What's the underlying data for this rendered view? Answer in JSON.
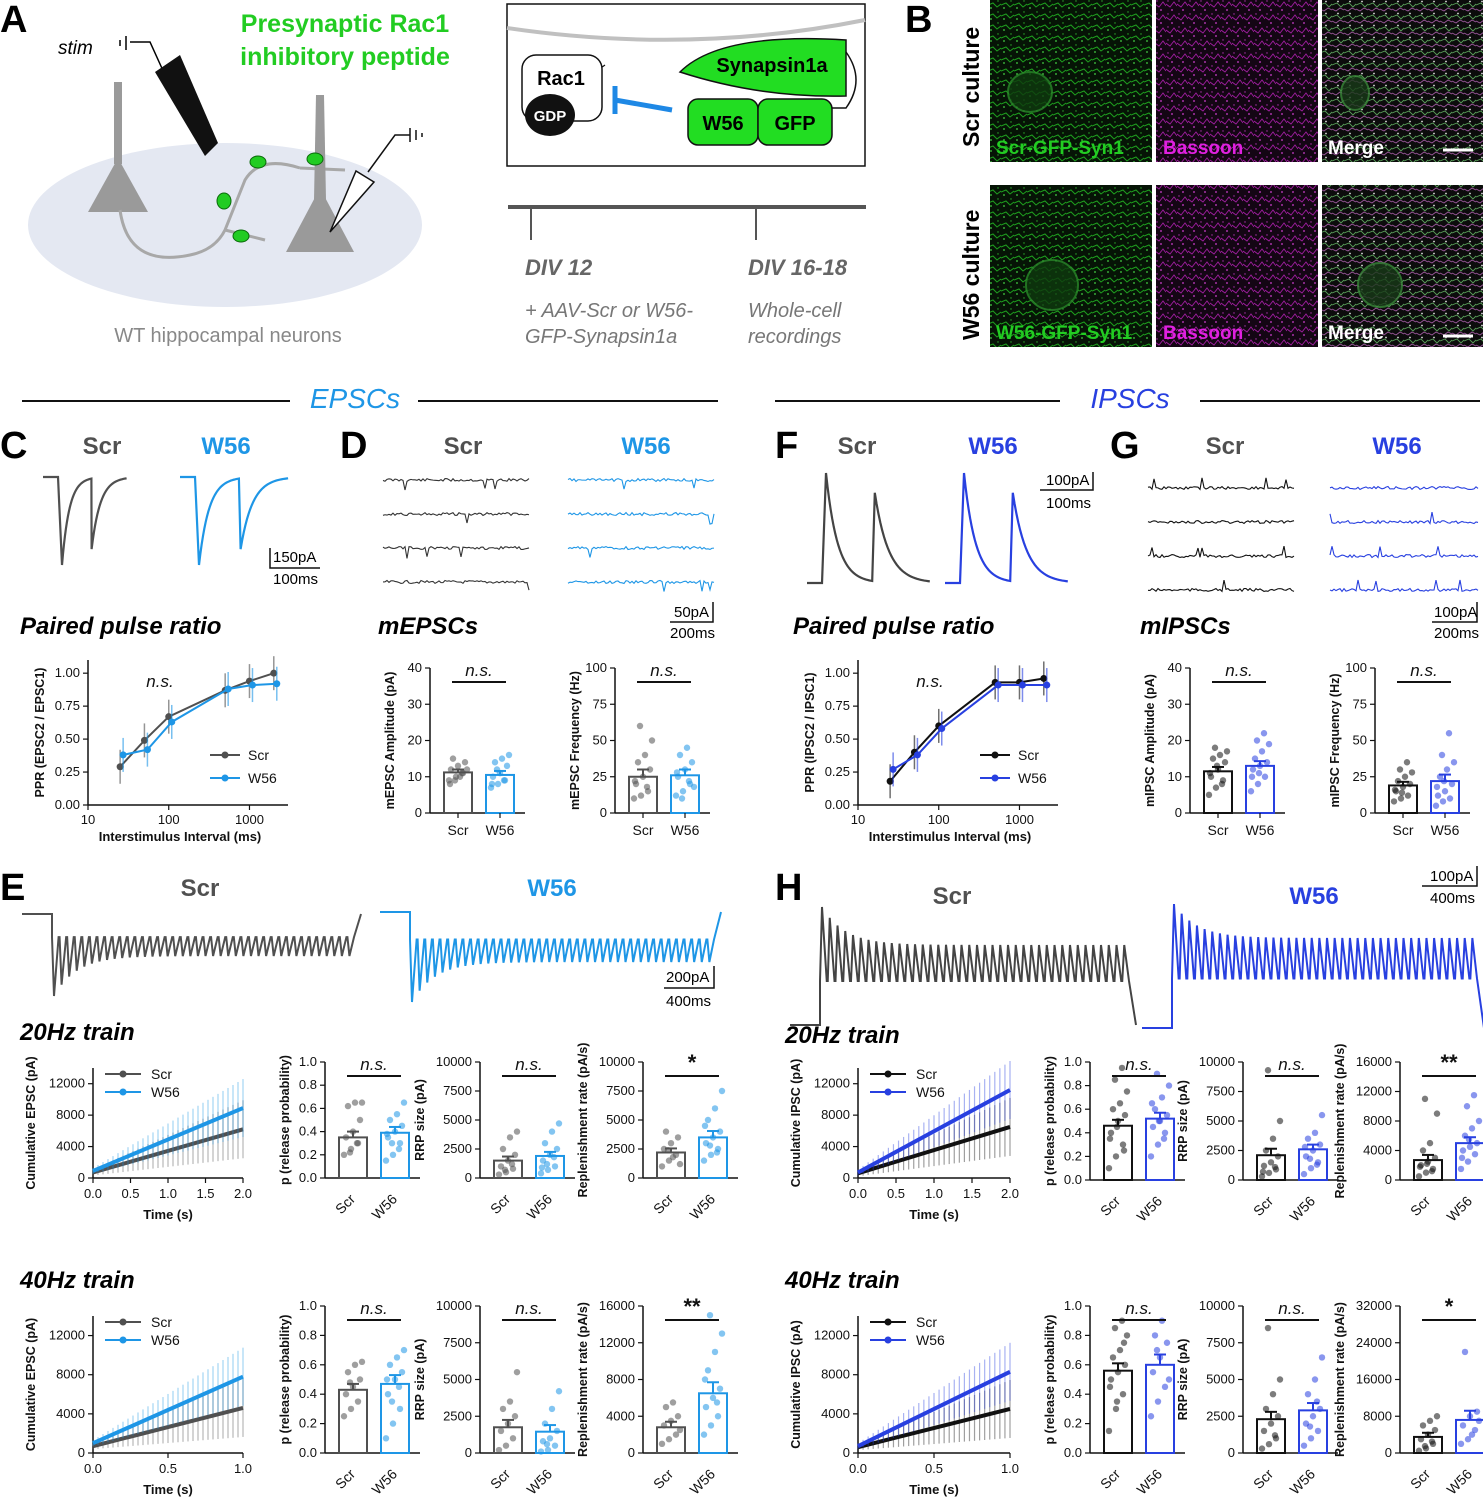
{
  "colors": {
    "scr_exc": "#505050",
    "w56_exc": "#1e96e6",
    "scr_inh": "#111111",
    "w56_inh": "#2840e0",
    "green_text": "#22cc22",
    "magenta_text": "#e020e0",
    "inhibit": "#1e88e5",
    "gray_text": "#888888"
  },
  "panelA": {
    "letter": "A",
    "stim_label": "stim",
    "peptide_line1": "Presynaptic Rac1",
    "peptide_line2": "inhibitory peptide",
    "caption": "WT hippocampal neurons",
    "rac1": "Rac1",
    "gdp": "GDP",
    "synapsin": "Synapsin1a",
    "w56": "W56",
    "gfp": "GFP",
    "tp1": "DIV 12",
    "tp2": "DIV 16-18",
    "tp1_desc1": "+ AAV-Scr or W56-",
    "tp1_desc2": "GFP-Synapsin1a",
    "tp2_desc1": "Whole-cell",
    "tp2_desc2": "recordings"
  },
  "panelB": {
    "letter": "B",
    "row1_label": "Scr culture",
    "row2_label": "W56 culture",
    "row1_images": [
      "Scr-GFP-Syn1",
      "Bassoon",
      "Merge"
    ],
    "row2_images": [
      "W56-GFP-Syn1",
      "Bassoon",
      "Merge"
    ]
  },
  "sections": {
    "exc": "EPSCs",
    "inh": "IPSCs"
  },
  "groups": {
    "scr": "Scr",
    "w56": "W56"
  },
  "panelC": {
    "letter": "C",
    "scalebar_y": "150pA",
    "scalebar_x": "100ms",
    "subtitle": "Paired pulse ratio",
    "ylabel": "PPR (EPSC2 / EPSC1)",
    "xlabel": "Interstimulus Interval (ms)",
    "ns": "n.s.",
    "yticks": [
      "0.00",
      "0.25",
      "0.50",
      "0.75",
      "1.00"
    ],
    "xticks": [
      "10",
      "100",
      "1000"
    ]
  },
  "panelD": {
    "letter": "D",
    "scalebar_y": "50pA",
    "scalebar_x": "200ms",
    "subtitle": "mEPSCs",
    "amp_ylabel": "mEPSC Amplitude (pA)",
    "freq_ylabel": "mEPSC Frequency (Hz)",
    "amp_yticks": [
      "0",
      "10",
      "20",
      "30",
      "40"
    ],
    "freq_yticks": [
      "0",
      "25",
      "50",
      "75",
      "100"
    ],
    "ns": "n.s."
  },
  "panelF": {
    "letter": "F",
    "scalebar_y": "100pA",
    "scalebar_x": "100ms",
    "subtitle": "Paired pulse ratio",
    "ylabel": "PPR (IPSC2 / IPSC1)",
    "xlabel": "Interstimulus Interval (ms)",
    "ns": "n.s.",
    "yticks": [
      "0.00",
      "0.25",
      "0.50",
      "0.75",
      "1.00"
    ],
    "xticks": [
      "10",
      "100",
      "1000"
    ]
  },
  "panelG": {
    "letter": "G",
    "scalebar_y": "100pA",
    "scalebar_x": "200ms",
    "subtitle": "mIPSCs",
    "amp_ylabel": "mIPSC Amplitude (pA)",
    "freq_ylabel": "mIPSC Frequency (Hz)",
    "amp_yticks": [
      "0",
      "10",
      "20",
      "30",
      "40"
    ],
    "freq_yticks": [
      "0",
      "25",
      "50",
      "75",
      "100"
    ],
    "ns": "n.s."
  },
  "panelE": {
    "letter": "E",
    "scalebar_y": "200pA",
    "scalebar_x": "400ms",
    "train20": "20Hz train",
    "train40": "40Hz train",
    "cum_ylabel": "Cumulative EPSC (pA)",
    "time_label": "Time (s)",
    "p_ylabel": "p (release probability)",
    "rrp_ylabel": "RRP size (pA)",
    "rep_ylabel": "Replenishment rate (pA/s)",
    "sig20": "*",
    "sig40": "**",
    "ns": "n.s."
  },
  "panelH": {
    "letter": "H",
    "scalebar_y": "100pA",
    "scalebar_x": "400ms",
    "train20": "20Hz train",
    "train40": "40Hz train",
    "cum_ylabel": "Cumulative IPSC (pA)",
    "time_label": "Time (s)",
    "p_ylabel": "p (release probability)",
    "rrp_ylabel": "RRP size (pA)",
    "rep_ylabel": "Replenishment rate (pA/s)",
    "sig20": "**",
    "sig40": "*",
    "ns": "n.s."
  },
  "chart_data": [
    {
      "id": "C_ppr",
      "type": "line",
      "title": "Paired pulse ratio",
      "xlabel": "Interstimulus Interval (ms)",
      "ylabel": "PPR (EPSC2 / EPSC1)",
      "x_scale": "log",
      "xlim": [
        10,
        3000
      ],
      "ylim": [
        0,
        1.1
      ],
      "x": [
        25,
        50,
        100,
        500,
        1000,
        2000
      ],
      "series": [
        {
          "name": "Scr",
          "values": [
            0.29,
            0.49,
            0.67,
            0.87,
            0.94,
            1.0
          ]
        },
        {
          "name": "W56",
          "values": [
            0.38,
            0.42,
            0.63,
            0.88,
            0.91,
            0.92
          ]
        }
      ]
    },
    {
      "id": "D_amp",
      "type": "bar",
      "ylabel": "mEPSC Amplitude (pA)",
      "ylim": [
        0,
        40
      ],
      "categories": [
        "Scr",
        "W56"
      ],
      "values": [
        11.2,
        10.5
      ],
      "sem": [
        0.8,
        1.1
      ],
      "points": [
        [
          9,
          10,
          11,
          12,
          13,
          14,
          15,
          10,
          12,
          9,
          11,
          8
        ],
        [
          7,
          8,
          9,
          10,
          11,
          13,
          14,
          15,
          16,
          12,
          9,
          8
        ]
      ]
    },
    {
      "id": "D_freq",
      "type": "bar",
      "ylabel": "mEPSC Frequency (Hz)",
      "ylim": [
        0,
        100
      ],
      "categories": [
        "Scr",
        "W56"
      ],
      "values": [
        25,
        26
      ],
      "sem": [
        5,
        4
      ],
      "points": [
        [
          10,
          12,
          15,
          20,
          25,
          30,
          35,
          40,
          50,
          60,
          18,
          22
        ],
        [
          12,
          15,
          20,
          25,
          30,
          35,
          40,
          45,
          18,
          10,
          22,
          28
        ]
      ]
    },
    {
      "id": "F_ppr",
      "type": "line",
      "title": "Paired pulse ratio",
      "xlabel": "Interstimulus Interval (ms)",
      "ylabel": "PPR (IPSC2 / IPSC1)",
      "x_scale": "log",
      "xlim": [
        10,
        3000
      ],
      "ylim": [
        0,
        1.1
      ],
      "x": [
        25,
        50,
        100,
        500,
        1000,
        2000
      ],
      "series": [
        {
          "name": "Scr",
          "values": [
            0.18,
            0.4,
            0.6,
            0.93,
            0.93,
            0.96
          ]
        },
        {
          "name": "W56",
          "values": [
            0.27,
            0.38,
            0.58,
            0.91,
            0.91,
            0.91
          ]
        }
      ]
    },
    {
      "id": "G_amp",
      "type": "bar",
      "ylabel": "mIPSC Amplitude (pA)",
      "ylim": [
        0,
        40
      ],
      "categories": [
        "Scr",
        "W56"
      ],
      "values": [
        11.5,
        13
      ],
      "sem": [
        1.2,
        1.3
      ],
      "points": [
        [
          5,
          7,
          9,
          10,
          12,
          14,
          15,
          16,
          17,
          18,
          8,
          11,
          13
        ],
        [
          6,
          8,
          10,
          12,
          13,
          14,
          15,
          17,
          19,
          20,
          22,
          10,
          11
        ]
      ]
    },
    {
      "id": "G_freq",
      "type": "bar",
      "ylabel": "mIPSC Frequency (Hz)",
      "ylim": [
        0,
        100
      ],
      "categories": [
        "Scr",
        "W56"
      ],
      "values": [
        19,
        22
      ],
      "sem": [
        2.5,
        4.5
      ],
      "points": [
        [
          8,
          10,
          12,
          15,
          18,
          20,
          22,
          25,
          28,
          30,
          35,
          16,
          14
        ],
        [
          5,
          8,
          10,
          12,
          15,
          20,
          25,
          30,
          35,
          40,
          55,
          18,
          22
        ]
      ]
    },
    {
      "id": "E20_cum",
      "type": "line",
      "title": "20Hz train",
      "xlabel": "Time (s)",
      "ylabel": "Cumulative EPSC (pA)",
      "xlim": [
        0,
        2
      ],
      "ylim": [
        0,
        14000
      ],
      "x": [
        0,
        2
      ],
      "series": [
        {
          "name": "Scr",
          "values": [
            700,
            6200
          ]
        },
        {
          "name": "W56",
          "values": [
            900,
            8900
          ]
        }
      ]
    },
    {
      "id": "E20_p",
      "type": "bar",
      "ylabel": "p (release probability)",
      "ylim": [
        0,
        1
      ],
      "categories": [
        "Scr",
        "W56"
      ],
      "values": [
        0.35,
        0.39
      ],
      "sem": [
        0.05,
        0.05
      ],
      "points": [
        [
          0.2,
          0.25,
          0.3,
          0.35,
          0.4,
          0.5,
          0.62,
          0.65,
          0.65,
          0.22,
          0.3
        ],
        [
          0.15,
          0.2,
          0.3,
          0.35,
          0.4,
          0.45,
          0.5,
          0.55,
          0.65,
          0.3,
          0.25,
          0.38
        ]
      ]
    },
    {
      "id": "E20_rrp",
      "type": "bar",
      "ylabel": "RRP size (pA)",
      "ylim": [
        0,
        10000
      ],
      "categories": [
        "Scr",
        "W56"
      ],
      "values": [
        1500,
        1900
      ],
      "sem": [
        350,
        350
      ],
      "points": [
        [
          300,
          500,
          800,
          1000,
          1500,
          2000,
          2500,
          3500,
          4000,
          700,
          1200
        ],
        [
          400,
          700,
          1000,
          1500,
          2000,
          2500,
          3000,
          4000,
          4700,
          1200,
          1800,
          900
        ]
      ]
    },
    {
      "id": "E20_rep",
      "type": "bar",
      "ylabel": "Replenishment rate (pA/s)",
      "ylim": [
        0,
        10000
      ],
      "categories": [
        "Scr",
        "W56"
      ],
      "values": [
        2200,
        3500
      ],
      "sem": [
        350,
        550
      ],
      "points": [
        [
          1000,
          1500,
          2000,
          2500,
          3000,
          3500,
          4000,
          1800,
          1200,
          2400
        ],
        [
          1500,
          2000,
          2500,
          3000,
          3500,
          4000,
          5000,
          6000,
          7500,
          2800,
          2200,
          4500
        ]
      ]
    },
    {
      "id": "E40_cum",
      "type": "line",
      "title": "40Hz train",
      "xlabel": "Time (s)",
      "ylabel": "Cumulative EPSC (pA)",
      "xlim": [
        0,
        1
      ],
      "ylim": [
        0,
        14000
      ],
      "x": [
        0,
        1
      ],
      "series": [
        {
          "name": "Scr",
          "values": [
            700,
            4600
          ]
        },
        {
          "name": "W56",
          "values": [
            1000,
            7800
          ]
        }
      ]
    },
    {
      "id": "E40_p",
      "type": "bar",
      "ylabel": "p (release probability)",
      "ylim": [
        0,
        1
      ],
      "categories": [
        "Scr",
        "W56"
      ],
      "values": [
        0.43,
        0.47
      ],
      "sem": [
        0.04,
        0.06
      ],
      "points": [
        [
          0.25,
          0.3,
          0.35,
          0.4,
          0.45,
          0.5,
          0.55,
          0.6,
          0.62,
          0.48
        ],
        [
          0.1,
          0.2,
          0.3,
          0.4,
          0.5,
          0.55,
          0.6,
          0.65,
          0.7,
          0.35,
          0.45,
          0.5
        ]
      ]
    },
    {
      "id": "E40_rrp",
      "type": "bar",
      "ylabel": "RRP size (pA)",
      "ylim": [
        0,
        10000
      ],
      "categories": [
        "Scr",
        "W56"
      ],
      "values": [
        1750,
        1450
      ],
      "sem": [
        500,
        450
      ],
      "points": [
        [
          200,
          500,
          1000,
          1500,
          2000,
          2500,
          3000,
          3500,
          5500
        ],
        [
          100,
          200,
          500,
          800,
          1000,
          1500,
          2000,
          3000,
          4200,
          600
        ]
      ]
    },
    {
      "id": "E40_rep",
      "type": "bar",
      "ylabel": "Replenishment rate (pA/s)",
      "ylim": [
        0,
        16000
      ],
      "categories": [
        "Scr",
        "W56"
      ],
      "values": [
        2800,
        6500
      ],
      "sem": [
        600,
        1200
      ],
      "points": [
        [
          1000,
          1500,
          2000,
          3000,
          3500,
          4000,
          5000,
          5500,
          2500
        ],
        [
          2000,
          3000,
          4000,
          5000,
          6000,
          7000,
          9000,
          11000,
          13000,
          15000,
          5500,
          8000
        ]
      ]
    },
    {
      "id": "H20_cum",
      "type": "line",
      "title": "20Hz train",
      "xlabel": "Time (s)",
      "ylabel": "Cumulative IPSC (pA)",
      "xlim": [
        0,
        2
      ],
      "ylim": [
        0,
        14000
      ],
      "x": [
        0,
        2
      ],
      "series": [
        {
          "name": "Scr",
          "values": [
            600,
            6500
          ]
        },
        {
          "name": "W56",
          "values": [
            700,
            11200
          ]
        }
      ]
    },
    {
      "id": "H20_p",
      "type": "bar",
      "ylabel": "p (release probability)",
      "ylim": [
        0,
        1
      ],
      "categories": [
        "Scr",
        "W56"
      ],
      "values": [
        0.46,
        0.52
      ],
      "sem": [
        0.05,
        0.05
      ],
      "points": [
        [
          0.1,
          0.2,
          0.3,
          0.4,
          0.5,
          0.55,
          0.6,
          0.65,
          0.75,
          0.85,
          0.95,
          0.35,
          0.45,
          0.25
        ],
        [
          0.2,
          0.3,
          0.4,
          0.45,
          0.5,
          0.55,
          0.6,
          0.7,
          0.8,
          0.9,
          0.35,
          0.65,
          0.5
        ]
      ]
    },
    {
      "id": "H20_rrp",
      "type": "bar",
      "ylabel": "RRP size (pA)",
      "ylim": [
        0,
        10000
      ],
      "categories": [
        "Scr",
        "W56"
      ],
      "values": [
        2100,
        2600
      ],
      "sem": [
        550,
        400
      ],
      "points": [
        [
          300,
          600,
          900,
          1200,
          1500,
          2000,
          2500,
          3500,
          5000,
          9300,
          1100,
          700
        ],
        [
          500,
          1000,
          1500,
          2000,
          2500,
          3000,
          3500,
          4000,
          5500,
          1800,
          1300,
          2800
        ]
      ]
    },
    {
      "id": "H20_rep",
      "type": "bar",
      "ylabel": "Replenishment rate (pA/s)",
      "ylim": [
        0,
        16000
      ],
      "categories": [
        "Scr",
        "W56"
      ],
      "values": [
        2700,
        5000
      ],
      "sem": [
        700,
        800
      ],
      "points": [
        [
          500,
          1000,
          1500,
          2000,
          2500,
          3000,
          4000,
          5000,
          9000,
          11000,
          1200,
          1800,
          2200
        ],
        [
          1500,
          2500,
          3500,
          4000,
          4500,
          5000,
          6000,
          7000,
          8000,
          10000,
          11500,
          3000,
          5500
        ]
      ]
    },
    {
      "id": "H40_cum",
      "type": "line",
      "title": "40Hz train",
      "xlabel": "Time (s)",
      "ylabel": "Cumulative IPSC (pA)",
      "xlim": [
        0,
        1
      ],
      "ylim": [
        0,
        14000
      ],
      "x": [
        0,
        1
      ],
      "series": [
        {
          "name": "Scr",
          "values": [
            600,
            4500
          ]
        },
        {
          "name": "W56",
          "values": [
            700,
            8300
          ]
        }
      ]
    },
    {
      "id": "H40_p",
      "type": "bar",
      "ylabel": "p (release probability)",
      "ylim": [
        0,
        1
      ],
      "categories": [
        "Scr",
        "W56"
      ],
      "values": [
        0.56,
        0.6
      ],
      "sem": [
        0.05,
        0.07
      ],
      "points": [
        [
          0.15,
          0.3,
          0.4,
          0.5,
          0.55,
          0.6,
          0.65,
          0.7,
          0.8,
          0.85,
          0.9,
          0.45,
          0.35,
          0.75
        ],
        [
          0.25,
          0.35,
          0.45,
          0.55,
          0.65,
          0.75,
          0.8,
          0.9,
          0.5,
          0.7
        ]
      ]
    },
    {
      "id": "H40_rrp",
      "type": "bar",
      "ylabel": "RRP size (pA)",
      "ylim": [
        0,
        10000
      ],
      "categories": [
        "Scr",
        "W56"
      ],
      "values": [
        2300,
        2900
      ],
      "sem": [
        500,
        500
      ],
      "points": [
        [
          300,
          600,
          1000,
          1500,
          2000,
          2500,
          3000,
          4000,
          5000,
          8500,
          1200
        ],
        [
          500,
          1000,
          1500,
          2000,
          2500,
          3000,
          4000,
          5000,
          6500,
          1800,
          3500
        ]
      ]
    },
    {
      "id": "H40_rep",
      "type": "bar",
      "ylabel": "Replenishment rate (pA/s)",
      "ylim": [
        0,
        32000
      ],
      "categories": [
        "Scr",
        "W56"
      ],
      "values": [
        3500,
        7200
      ],
      "sem": [
        900,
        2000
      ],
      "points": [
        [
          500,
          1000,
          2000,
          3000,
          4000,
          5000,
          6000,
          7000,
          8000,
          1500,
          2500
        ],
        [
          2000,
          3000,
          5000,
          6000,
          8000,
          9000,
          22000,
          4000,
          7000
        ]
      ]
    }
  ]
}
